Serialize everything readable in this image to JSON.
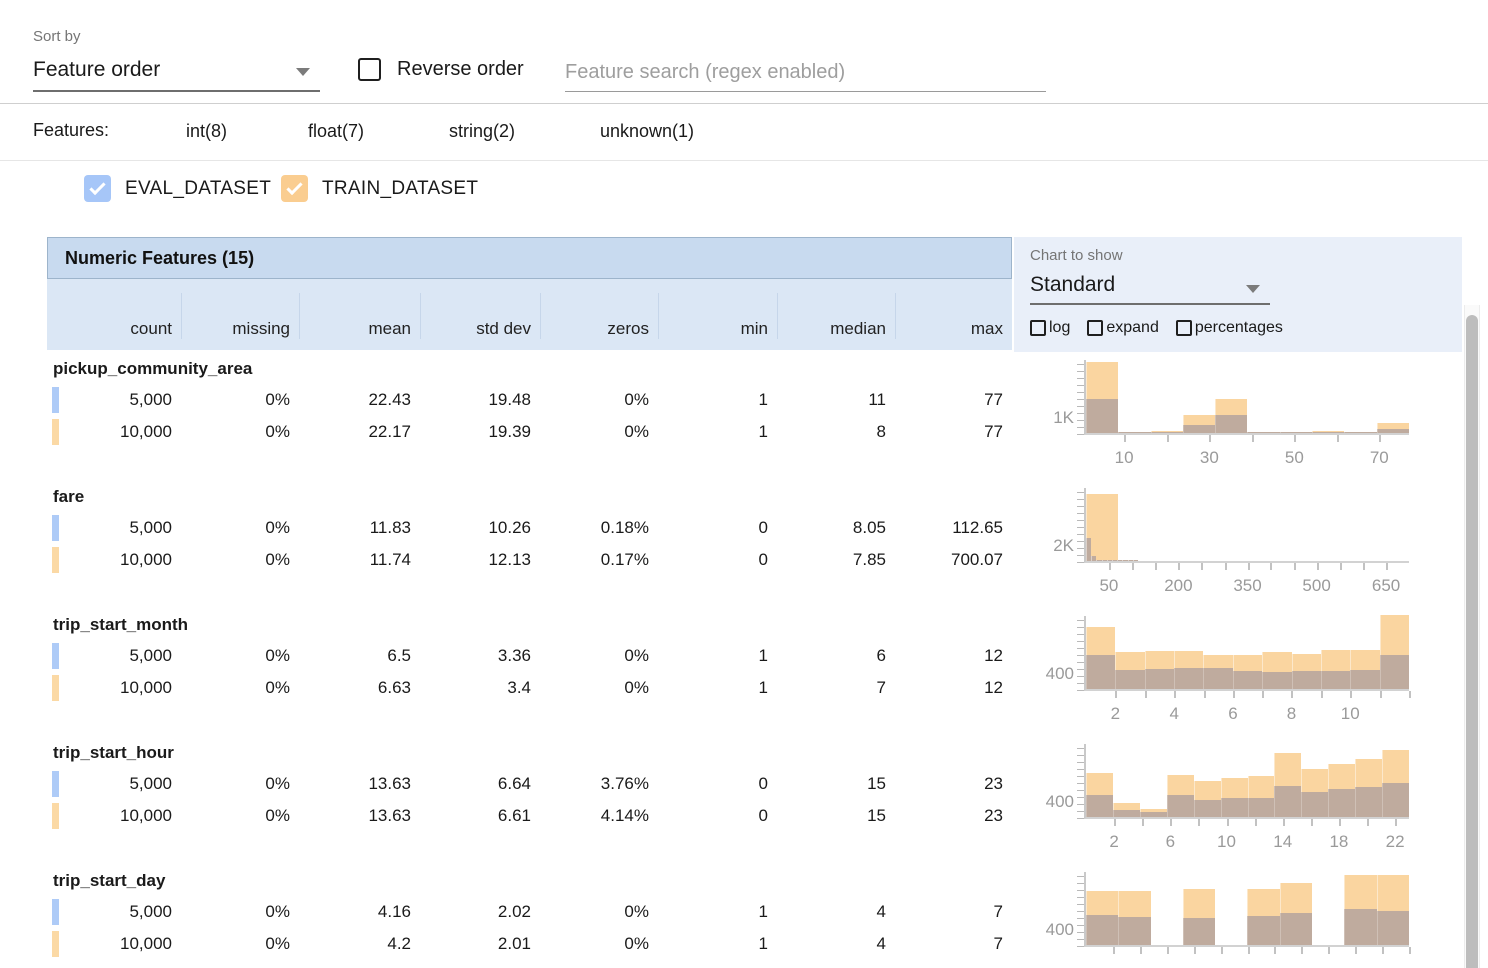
{
  "sort": {
    "label": "Sort by",
    "value": "Feature order",
    "reverse_label": "Reverse order",
    "search_placeholder": "Feature search (regex enabled)"
  },
  "features_filter": {
    "label": "Features:",
    "types": [
      {
        "label": "int(8)",
        "checked": true
      },
      {
        "label": "float(7)",
        "checked": true
      },
      {
        "label": "string(2)",
        "checked": true
      },
      {
        "label": "unknown(1)",
        "checked": true
      }
    ]
  },
  "datasets": [
    {
      "name": "EVAL_DATASET",
      "checked": true,
      "color": "#A6C6F8"
    },
    {
      "name": "TRAIN_DATASET",
      "checked": true,
      "color": "#FACD90"
    }
  ],
  "chart_controls": {
    "label": "Chart to show",
    "value": "Standard",
    "options": [
      {
        "label": "log",
        "checked": false
      },
      {
        "label": "expand",
        "checked": false
      },
      {
        "label": "percentages",
        "checked": false
      }
    ]
  },
  "table": {
    "title": "Numeric Features (15)",
    "columns": [
      "count",
      "missing",
      "mean",
      "std dev",
      "zeros",
      "min",
      "median",
      "max"
    ],
    "features": [
      {
        "name": "pickup_community_area",
        "rows": [
          {
            "dataset": "eval",
            "values": [
              "5,000",
              "0%",
              "22.43",
              "19.48",
              "0%",
              "1",
              "11",
              "77"
            ]
          },
          {
            "dataset": "train",
            "values": [
              "10,000",
              "0%",
              "22.17",
              "19.39",
              "0%",
              "1",
              "8",
              "77"
            ]
          }
        ]
      },
      {
        "name": "fare",
        "rows": [
          {
            "dataset": "eval",
            "values": [
              "5,000",
              "0%",
              "11.83",
              "10.26",
              "0.18%",
              "0",
              "8.05",
              "112.65"
            ]
          },
          {
            "dataset": "train",
            "values": [
              "10,000",
              "0%",
              "11.74",
              "12.13",
              "0.17%",
              "0",
              "7.85",
              "700.07"
            ]
          }
        ]
      },
      {
        "name": "trip_start_month",
        "rows": [
          {
            "dataset": "eval",
            "values": [
              "5,000",
              "0%",
              "6.5",
              "3.36",
              "0%",
              "1",
              "6",
              "12"
            ]
          },
          {
            "dataset": "train",
            "values": [
              "10,000",
              "0%",
              "6.63",
              "3.4",
              "0%",
              "1",
              "7",
              "12"
            ]
          }
        ]
      },
      {
        "name": "trip_start_hour",
        "rows": [
          {
            "dataset": "eval",
            "values": [
              "5,000",
              "0%",
              "13.63",
              "6.64",
              "3.76%",
              "0",
              "15",
              "23"
            ]
          },
          {
            "dataset": "train",
            "values": [
              "10,000",
              "0%",
              "13.63",
              "6.61",
              "4.14%",
              "0",
              "15",
              "23"
            ]
          }
        ]
      },
      {
        "name": "trip_start_day",
        "rows": [
          {
            "dataset": "eval",
            "values": [
              "5,000",
              "0%",
              "4.16",
              "2.02",
              "0%",
              "1",
              "4",
              "7"
            ]
          },
          {
            "dataset": "train",
            "values": [
              "10,000",
              "0%",
              "4.2",
              "2.01",
              "0%",
              "1",
              "4",
              "7"
            ]
          }
        ]
      }
    ]
  },
  "chart_data": [
    {
      "feature": "pickup_community_area",
      "type": "bar",
      "x_range": [
        1,
        77
      ],
      "ytick_label": "1K",
      "ytick_value": 1000,
      "ymax": 4600,
      "xlabels": [
        {
          "text": "10",
          "pct": 11.8
        },
        {
          "text": "30",
          "pct": 38.2
        },
        {
          "text": "50",
          "pct": 64.5
        },
        {
          "text": "70",
          "pct": 90.8
        }
      ],
      "xticks_pct": [
        11.8,
        25.0,
        38.2,
        51.3,
        64.5,
        77.6,
        90.8
      ],
      "series": [
        {
          "name": "TRAIN_DATASET",
          "values": [
            4350,
            80,
            150,
            1100,
            2100,
            40,
            40,
            150,
            40,
            600
          ]
        },
        {
          "name": "EVAL_DATASET",
          "values": [
            2100,
            30,
            60,
            500,
            1080,
            15,
            15,
            60,
            15,
            240
          ]
        }
      ]
    },
    {
      "feature": "fare",
      "type": "bar",
      "x_range": [
        0,
        700
      ],
      "ytick_label": "2K",
      "ytick_value": 2000,
      "ymax": 9300,
      "xlabels": [
        {
          "text": "50",
          "pct": 7.1
        },
        {
          "text": "200",
          "pct": 28.6
        },
        {
          "text": "350",
          "pct": 50
        },
        {
          "text": "500",
          "pct": 71.4
        },
        {
          "text": "650",
          "pct": 92.9
        }
      ],
      "xticks_pct": [
        7.1,
        14.3,
        21.4,
        28.6,
        35.7,
        42.9,
        50,
        57.1,
        64.3,
        71.4,
        78.6,
        85.7,
        92.9
      ],
      "series": [
        {
          "name": "TRAIN_DATASET",
          "values": [
            8300,
            0,
            0,
            0,
            0,
            0,
            0,
            0,
            0,
            0
          ]
        },
        {
          "name": "EVAL_DATASET",
          "span_pct": 16.1,
          "values": [
            2900,
            570,
            120,
            60,
            40,
            30,
            20,
            15,
            10,
            5
          ]
        }
      ]
    },
    {
      "feature": "trip_start_month",
      "type": "bar",
      "x_range": [
        1,
        12
      ],
      "ytick_label": "400",
      "ytick_value": 400,
      "ymax": 1900,
      "xlabels": [
        {
          "text": "2",
          "pct": 9.1
        },
        {
          "text": "4",
          "pct": 27.3
        },
        {
          "text": "6",
          "pct": 45.5
        },
        {
          "text": "8",
          "pct": 63.6
        },
        {
          "text": "10",
          "pct": 81.8
        }
      ],
      "xticks_pct": [
        9.1,
        18.2,
        27.3,
        36.4,
        45.5,
        54.5,
        63.6,
        72.7,
        81.8,
        90.9,
        100
      ],
      "series": [
        {
          "name": "TRAIN_DATASET",
          "values": [
            1560,
            935,
            960,
            960,
            850,
            850,
            950,
            890,
            980,
            1000,
            1870
          ]
        },
        {
          "name": "EVAL_DATASET",
          "values": [
            850,
            485,
            500,
            520,
            520,
            460,
            435,
            460,
            460,
            485,
            865
          ]
        }
      ]
    },
    {
      "feature": "trip_start_hour",
      "type": "bar",
      "x_range": [
        0,
        23
      ],
      "ytick_label": "400",
      "ytick_value": 400,
      "ymax": 1900,
      "xlabels": [
        {
          "text": "2",
          "pct": 8.7
        },
        {
          "text": "6",
          "pct": 26.1
        },
        {
          "text": "10",
          "pct": 43.5
        },
        {
          "text": "14",
          "pct": 60.9
        },
        {
          "text": "18",
          "pct": 78.3
        },
        {
          "text": "22",
          "pct": 95.7
        }
      ],
      "xticks_pct": [
        8.7,
        17.4,
        26.1,
        34.8,
        43.5,
        52.2,
        60.9,
        69.6,
        78.3,
        87,
        95.7
      ],
      "series": [
        {
          "name": "TRAIN_DATASET",
          "values": [
            1120,
            360,
            200,
            1060,
            910,
            990,
            1040,
            1610,
            1220,
            1350,
            1480,
            1710
          ]
        },
        {
          "name": "EVAL_DATASET",
          "values": [
            560,
            170,
            130,
            560,
            420,
            480,
            490,
            780,
            640,
            700,
            750,
            850
          ]
        }
      ]
    },
    {
      "feature": "trip_start_day",
      "type": "bar",
      "x_range": [
        1,
        7
      ],
      "ytick_label": "400",
      "ytick_value": 400,
      "ymax": 1900,
      "xlabels": [],
      "xticks_pct": [
        8.3,
        16.7,
        25,
        33.3,
        41.7,
        50,
        58.3,
        66.7,
        75,
        83.3,
        91.7,
        100
      ],
      "series": [
        {
          "name": "TRAIN_DATASET",
          "values": [
            1380,
            1380,
            0,
            1430,
            0,
            1430,
            1580,
            0,
            1770,
            1770
          ]
        },
        {
          "name": "EVAL_DATASET",
          "values": [
            750,
            710,
            0,
            675,
            0,
            730,
            800,
            0,
            910,
            860
          ]
        }
      ]
    }
  ],
  "colors": {
    "accent_indigo": "#3D50B4",
    "eval_checkbox": "#A6C6F8",
    "train_checkbox": "#FACD90",
    "chip_blue": "#AECBF7",
    "chip_orange": "#FBD9A5",
    "hist_train": "#FAD5A0",
    "hist_overlap": "#BFAB9E",
    "header_band": "#C8DAEF",
    "header_row": "#DBE7F5",
    "chart_panel": "#E9EFF9"
  }
}
